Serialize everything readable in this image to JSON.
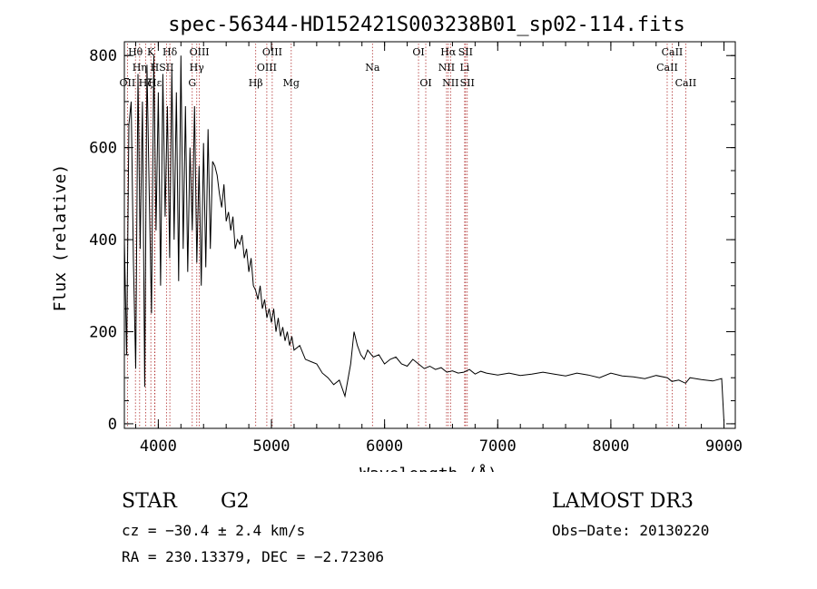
{
  "chart_data": {
    "type": "line",
    "title": "spec-56344-HD152421S003238B01_sp02-114.fits",
    "xlabel": "Wavelength (Å)",
    "ylabel": "Flux (relative)",
    "xlim": [
      3700,
      9100
    ],
    "ylim": [
      -10,
      830
    ],
    "xticks": [
      "4000",
      "5000",
      "6000",
      "7000",
      "8000",
      "9000"
    ],
    "yticks": [
      "0",
      "200",
      "400",
      "600",
      "800"
    ],
    "grid": false,
    "series": [
      {
        "x": [
          3700,
          3720,
          3740,
          3760,
          3780,
          3800,
          3820,
          3840,
          3860,
          3880,
          3900,
          3920,
          3940,
          3960,
          3980,
          4000,
          4020,
          4040,
          4060,
          4080,
          4100,
          4120,
          4140,
          4160,
          4180,
          4200,
          4220,
          4240,
          4260,
          4280,
          4300,
          4320,
          4340,
          4360,
          4380,
          4400,
          4420,
          4440,
          4460,
          4480,
          4500,
          4520,
          4540,
          4560,
          4580,
          4600,
          4620,
          4640,
          4660,
          4680,
          4700,
          4720,
          4740,
          4760,
          4780,
          4800,
          4820,
          4840,
          4860,
          4880,
          4900,
          4920,
          4940,
          4960,
          4980,
          5000,
          5020,
          5040,
          5060,
          5080,
          5100,
          5120,
          5140,
          5160,
          5180,
          5200,
          5250,
          5300,
          5350,
          5400,
          5450,
          5500,
          5550,
          5600,
          5650,
          5700,
          5730,
          5760,
          5790,
          5820,
          5850,
          5900,
          5950,
          6000,
          6050,
          6100,
          6150,
          6200,
          6250,
          6300,
          6350,
          6400,
          6450,
          6500,
          6550,
          6600,
          6650,
          6700,
          6750,
          6800,
          6850,
          6900,
          7000,
          7100,
          7200,
          7300,
          7400,
          7500,
          7600,
          7700,
          7800,
          7900,
          8000,
          8100,
          8200,
          8300,
          8400,
          8500,
          8540,
          8600,
          8660,
          8700,
          8800,
          8900,
          8980,
          9000
        ],
        "y": [
          400,
          150,
          650,
          700,
          350,
          120,
          760,
          380,
          700,
          80,
          780,
          500,
          240,
          800,
          420,
          720,
          300,
          760,
          450,
          690,
          360,
          770,
          400,
          720,
          310,
          800,
          380,
          690,
          330,
          600,
          420,
          690,
          350,
          560,
          300,
          610,
          340,
          640,
          380,
          570,
          560,
          540,
          500,
          470,
          520,
          440,
          460,
          420,
          450,
          380,
          400,
          390,
          410,
          360,
          380,
          330,
          360,
          300,
          290,
          270,
          300,
          250,
          270,
          230,
          250,
          220,
          250,
          200,
          230,
          190,
          210,
          180,
          200,
          170,
          190,
          160,
          170,
          140,
          135,
          130,
          110,
          100,
          85,
          95,
          60,
          130,
          200,
          170,
          150,
          140,
          160,
          145,
          150,
          130,
          140,
          145,
          130,
          125,
          140,
          130,
          120,
          125,
          118,
          122,
          112,
          115,
          110,
          112,
          118,
          108,
          114,
          110,
          106,
          110,
          105,
          108,
          112,
          108,
          104,
          110,
          106,
          100,
          110,
          104,
          102,
          98,
          105,
          100,
          92,
          95,
          88,
          100,
          96,
          93,
          98,
          5
        ]
      }
    ],
    "annotations": [
      {
        "label": "OII",
        "x": 3727,
        "row": 3
      },
      {
        "label": "Hθ",
        "x": 3798,
        "row": 1
      },
      {
        "label": "Hη",
        "x": 3835,
        "row": 2
      },
      {
        "label": "Hζ",
        "x": 3889,
        "row": 3
      },
      {
        "label": "K",
        "x": 3934,
        "row": 1
      },
      {
        "label": "H",
        "x": 3968,
        "row": 2
      },
      {
        "label": "Hε",
        "x": 3970,
        "row": 3
      },
      {
        "label": "SII",
        "x": 4072,
        "row": 2
      },
      {
        "label": "Hδ",
        "x": 4102,
        "row": 1
      },
      {
        "label": "G",
        "x": 4300,
        "row": 3
      },
      {
        "label": "OIII",
        "x": 4363,
        "row": 1
      },
      {
        "label": "Hγ",
        "x": 4340,
        "row": 2
      },
      {
        "label": "Hβ",
        "x": 4861,
        "row": 3
      },
      {
        "label": "OIII",
        "x": 4959,
        "row": 2
      },
      {
        "label": "OIII",
        "x": 5007,
        "row": 1
      },
      {
        "label": "Mg",
        "x": 5175,
        "row": 3
      },
      {
        "label": "Na",
        "x": 5893,
        "row": 2
      },
      {
        "label": "OI",
        "x": 6300,
        "row": 1
      },
      {
        "label": "OI",
        "x": 6364,
        "row": 3
      },
      {
        "label": "NII",
        "x": 6548,
        "row": 2
      },
      {
        "label": "Hα",
        "x": 6563,
        "row": 1
      },
      {
        "label": "NII",
        "x": 6583,
        "row": 3
      },
      {
        "label": "Li",
        "x": 6708,
        "row": 2
      },
      {
        "label": "SII",
        "x": 6716,
        "row": 1
      },
      {
        "label": "SII",
        "x": 6731,
        "row": 3
      },
      {
        "label": "CaII",
        "x": 8498,
        "row": 2
      },
      {
        "label": "CaII",
        "x": 8542,
        "row": 1
      },
      {
        "label": "CaII",
        "x": 8662,
        "row": 3
      }
    ]
  },
  "info": {
    "object_type": "STAR",
    "subclass": "G2",
    "survey": "LAMOST DR3",
    "cz": "cz = −30.4 ± 2.4 km/s",
    "obs_date": "Obs−Date: 20130220",
    "coords": "RA = 230.13379, DEC =  −2.72306"
  },
  "colors": {
    "line": "#000000",
    "marker": "#b03030",
    "background": "#ffffff"
  }
}
